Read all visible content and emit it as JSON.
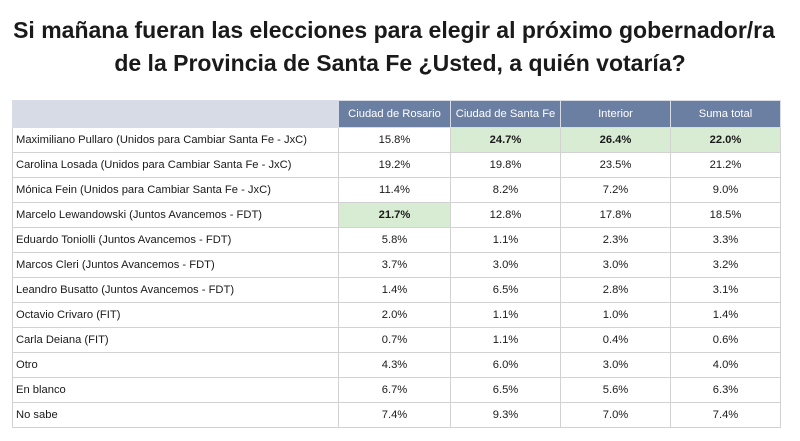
{
  "title": {
    "line1": "Si mañana fueran las elecciones para elegir al próximo gobernador/ra",
    "line2": "de la Provincia de Santa Fe ¿Usted, a quién votaría?"
  },
  "chart_data": {
    "type": "table",
    "columns": [
      "Ciudad de Rosario",
      "Ciudad de Santa Fe",
      "Interior",
      "Suma total"
    ],
    "rows": [
      {
        "label": "Maximiliano Pullaro (Unidos para Cambiar Santa Fe - JxC)",
        "values": [
          "15.8%",
          "24.7%",
          "26.4%",
          "22.0%"
        ],
        "highlight": [
          false,
          true,
          true,
          true
        ]
      },
      {
        "label": "Carolina Losada (Unidos para Cambiar Santa Fe - JxC)",
        "values": [
          "19.2%",
          "19.8%",
          "23.5%",
          "21.2%"
        ],
        "highlight": [
          false,
          false,
          false,
          false
        ]
      },
      {
        "label": "Mónica Fein (Unidos para Cambiar Santa Fe - JxC)",
        "values": [
          "11.4%",
          "8.2%",
          "7.2%",
          "9.0%"
        ],
        "highlight": [
          false,
          false,
          false,
          false
        ]
      },
      {
        "label": "Marcelo Lewandowski (Juntos Avancemos - FDT)",
        "values": [
          "21.7%",
          "12.8%",
          "17.8%",
          "18.5%"
        ],
        "highlight": [
          true,
          false,
          false,
          false
        ]
      },
      {
        "label": "Eduardo Toniolli (Juntos Avancemos - FDT)",
        "values": [
          "5.8%",
          "1.1%",
          "2.3%",
          "3.3%"
        ],
        "highlight": [
          false,
          false,
          false,
          false
        ]
      },
      {
        "label": "Marcos Cleri (Juntos Avancemos - FDT)",
        "values": [
          "3.7%",
          "3.0%",
          "3.0%",
          "3.2%"
        ],
        "highlight": [
          false,
          false,
          false,
          false
        ]
      },
      {
        "label": "Leandro Busatto (Juntos Avancemos - FDT)",
        "values": [
          "1.4%",
          "6.5%",
          "2.8%",
          "3.1%"
        ],
        "highlight": [
          false,
          false,
          false,
          false
        ]
      },
      {
        "label": "Octavio Crivaro (FIT)",
        "values": [
          "2.0%",
          "1.1%",
          "1.0%",
          "1.4%"
        ],
        "highlight": [
          false,
          false,
          false,
          false
        ]
      },
      {
        "label": "Carla Deiana (FIT)",
        "values": [
          "0.7%",
          "1.1%",
          "0.4%",
          "0.6%"
        ],
        "highlight": [
          false,
          false,
          false,
          false
        ]
      },
      {
        "label": "Otro",
        "values": [
          "4.3%",
          "6.0%",
          "3.0%",
          "4.0%"
        ],
        "highlight": [
          false,
          false,
          false,
          false
        ]
      },
      {
        "label": "En blanco",
        "values": [
          "6.7%",
          "6.5%",
          "5.6%",
          "6.3%"
        ],
        "highlight": [
          false,
          false,
          false,
          false
        ]
      },
      {
        "label": "No sabe",
        "values": [
          "7.4%",
          "9.3%",
          "7.0%",
          "7.4%"
        ],
        "highlight": [
          false,
          false,
          false,
          false
        ]
      }
    ]
  },
  "colors": {
    "header_bg": "#6b7fa3",
    "header_blank_bg": "#d6dbe5",
    "highlight_bg": "#d7ecd3"
  }
}
